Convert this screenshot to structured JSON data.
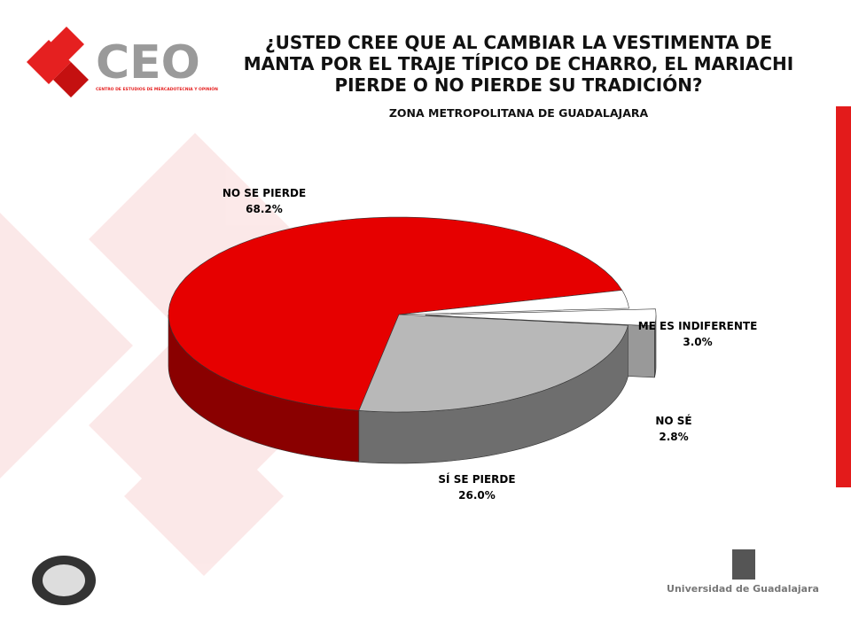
{
  "logo": {
    "name": "CEO",
    "subtitle": "CENTRO DE ESTUDIOS DE MERCADOTECNIA Y OPINIÓN"
  },
  "footer": {
    "university": "Universidad de Guadalajara"
  },
  "chart_data": {
    "type": "pie",
    "title": "¿USTED CREE QUE AL CAMBIAR LA VESTIMENTA DE MANTA POR EL TRAJE TÍPICO DE CHARRO, EL MARIACHI PIERDE O NO PIERDE SU TRADICIÓN?",
    "subtitle": "ZONA METROPOLITANA DE GUADALAJARA",
    "categories": [
      "NO SE PIERDE",
      "ME ES INDIFERENTE",
      "NO SÉ",
      "SÍ SE PIERDE"
    ],
    "values": [
      68.2,
      3.0,
      2.8,
      26.0
    ],
    "value_labels": [
      "68.2%",
      "3.0%",
      "2.8%",
      "26.0%"
    ],
    "colors": [
      "#e60000",
      "#ffffff",
      "#ffffff",
      "#b8b8b8"
    ]
  }
}
